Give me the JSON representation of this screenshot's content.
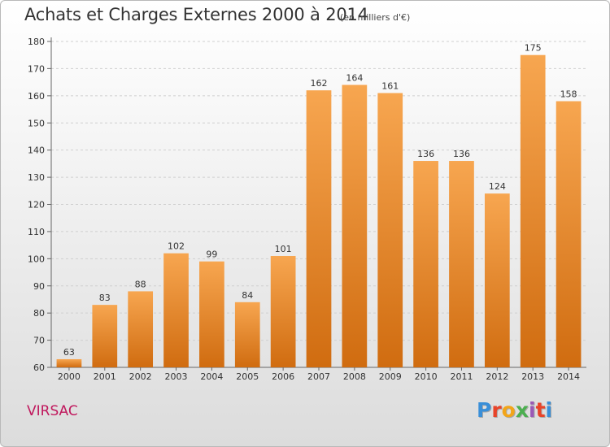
{
  "header": {
    "title": "Achats et Charges Externes 2000 à 2014",
    "subtitle": "(en milliers d'€)"
  },
  "footer": {
    "commune": "VIRSAC",
    "logo_letters": [
      "P",
      "r",
      "o",
      "x",
      "i",
      "t",
      "i"
    ],
    "logo_colors": [
      "#3a8fd8",
      "#e8442a",
      "#f2a51a",
      "#4caf50",
      "#9b59b6",
      "#e8442a",
      "#3a8fd8"
    ]
  },
  "chart_data": {
    "type": "bar",
    "categories": [
      "2000",
      "2001",
      "2002",
      "2003",
      "2004",
      "2005",
      "2006",
      "2007",
      "2008",
      "2009",
      "2010",
      "2011",
      "2012",
      "2013",
      "2014"
    ],
    "values": [
      63,
      83,
      88,
      102,
      99,
      84,
      101,
      162,
      164,
      161,
      136,
      136,
      124,
      175,
      158
    ],
    "value_labels": [
      "63",
      "83",
      "88",
      "102",
      "99",
      "84",
      "101",
      "162",
      "164",
      "161",
      "136",
      "136",
      "124",
      "175",
      "158"
    ],
    "yticks": [
      "60",
      "70",
      "80",
      "90",
      "100",
      "110",
      "120",
      "130",
      "140",
      "150",
      "160",
      "170",
      "180"
    ],
    "ylim": [
      60,
      180
    ],
    "grid": true,
    "bar_color_top": "#f7a650",
    "bar_color_bottom": "#d06c10"
  }
}
